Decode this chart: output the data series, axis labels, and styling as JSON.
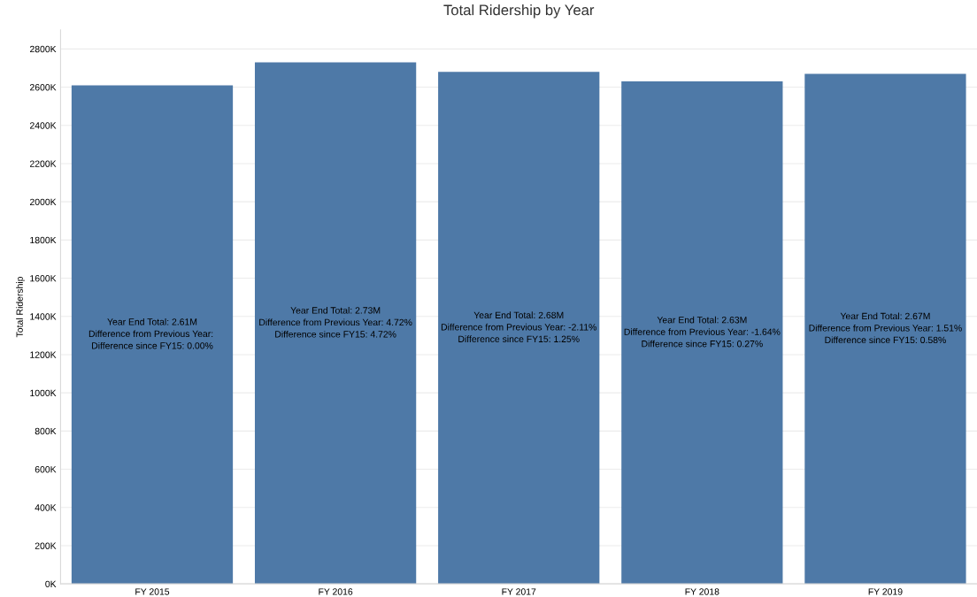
{
  "chart_data": {
    "type": "bar",
    "title": "Total Ridership by Year",
    "ylabel": "Total Ridership",
    "categories": [
      "FY 2015",
      "FY 2016",
      "FY 2017",
      "FY 2018",
      "FY 2019"
    ],
    "values": [
      2610,
      2730,
      2680,
      2630,
      2670
    ],
    "color": "#4e79a7",
    "annotations": [
      "Year End Total: 2.61M\nDifference from Previous Year: \nDifference since FY15: 0.00%",
      "Year End Total: 2.73M\nDifference from Previous Year: 4.72%\nDifference since FY15: 4.72%",
      "Year End Total: 2.68M\nDifference from Previous Year: -2.11%\nDifference since FY15: 1.25%",
      "Year End Total: 2.63M\nDifference from Previous Year: -1.64%\nDifference since FY15: 0.27%",
      "Year End Total: 2.67M\nDifference from Previous Year: 1.51%\nDifference since FY15: 0.58%"
    ],
    "ylim": [
      0,
      2900
    ],
    "yticks": [
      {
        "value": 0,
        "label": "0K"
      },
      {
        "value": 200,
        "label": "200K"
      },
      {
        "value": 400,
        "label": "400K"
      },
      {
        "value": 600,
        "label": "600K"
      },
      {
        "value": 800,
        "label": "800K"
      },
      {
        "value": 1000,
        "label": "1000K"
      },
      {
        "value": 1200,
        "label": "1200K"
      },
      {
        "value": 1400,
        "label": "1400K"
      },
      {
        "value": 1600,
        "label": "1600K"
      },
      {
        "value": 1800,
        "label": "1800K"
      },
      {
        "value": 2000,
        "label": "2000K"
      },
      {
        "value": 2200,
        "label": "2200K"
      },
      {
        "value": 2400,
        "label": "2400K"
      },
      {
        "value": 2600,
        "label": "2600K"
      },
      {
        "value": 2800,
        "label": "2800K"
      }
    ],
    "grid": "y"
  }
}
